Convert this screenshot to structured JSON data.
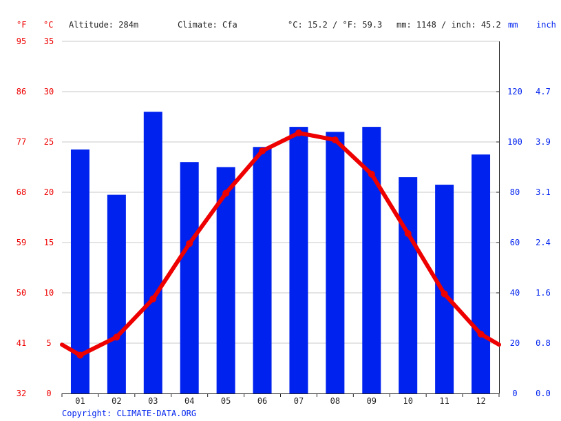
{
  "header": {
    "f_unit": "°F",
    "c_unit": "°C",
    "altitude": "Altitude: 284m",
    "climate": "Climate: Cfa",
    "temp_avg": "°C: 15.2 / °F: 59.3",
    "precip_avg": "mm: 1148 / inch: 45.2",
    "mm_unit": "mm",
    "inch_unit": "inch"
  },
  "copyright": "Copyright: CLIMATE-DATA.ORG",
  "colors": {
    "temperature": "#ee0000",
    "precipitation": "#0022ee",
    "grid": "#c8c8c8",
    "axis": "#222222"
  },
  "chart_data": {
    "type": "bar",
    "categories": [
      "01",
      "02",
      "03",
      "04",
      "05",
      "06",
      "07",
      "08",
      "09",
      "10",
      "11",
      "12"
    ],
    "series": [
      {
        "type": "bar",
        "unit": "mm",
        "values": [
          97,
          79,
          112,
          92,
          90,
          98,
          106,
          104,
          106,
          86,
          83,
          95
        ]
      },
      {
        "type": "line",
        "unit": "°C",
        "values": [
          3.8,
          5.6,
          9.4,
          14.9,
          19.9,
          24.1,
          25.9,
          25.2,
          21.8,
          15.9,
          9.9,
          5.9
        ]
      }
    ],
    "left_axis_c": {
      "ticks": [
        "0",
        "5",
        "10",
        "15",
        "20",
        "25",
        "30",
        "35"
      ],
      "range": [
        0,
        35
      ]
    },
    "left_axis_f": {
      "ticks": [
        "32",
        "41",
        "50",
        "59",
        "68",
        "77",
        "86",
        "95"
      ]
    },
    "right_axis_mm": {
      "ticks": [
        "0",
        "20",
        "40",
        "60",
        "80",
        "100",
        "120"
      ],
      "range": [
        0,
        140
      ]
    },
    "right_axis_inch": {
      "ticks": [
        "0.0",
        "0.8",
        "1.6",
        "2.4",
        "3.1",
        "3.9",
        "4.7"
      ]
    },
    "grid": true
  }
}
